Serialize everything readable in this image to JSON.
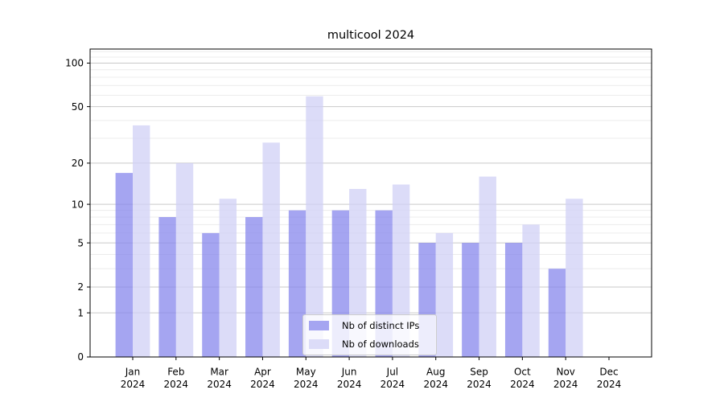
{
  "title": "multicool 2024",
  "colors": {
    "ips_bar": "#8787ec",
    "downloads_bar": "#d0d0f6",
    "bar_opacity": 0.75,
    "ips_rendered": "#a5a5f1",
    "downloads_rendered": "#dcdcf8",
    "grid_major": "#c9c9c9",
    "grid_minor": "#ececec",
    "axis": "#000000",
    "text": "#000000",
    "legend_border": "#cccccc"
  },
  "legend": {
    "items": [
      {
        "label": "Nb of distinct IPs",
        "series": 0
      },
      {
        "label": "Nb of downloads",
        "series": 1
      }
    ]
  },
  "chart_data": {
    "type": "bar",
    "title": "multicool 2024",
    "categories": [
      "Jan 2024",
      "Feb 2024",
      "Mar 2024",
      "Apr 2024",
      "May 2024",
      "Jun 2024",
      "Jul 2024",
      "Aug 2024",
      "Sep 2024",
      "Oct 2024",
      "Nov 2024",
      "Dec 2024"
    ],
    "series": [
      {
        "name": "Nb of distinct IPs",
        "color_key": "ips_bar",
        "values": [
          17,
          8,
          6,
          8,
          9,
          9,
          9,
          5,
          5,
          5,
          3,
          0
        ]
      },
      {
        "name": "Nb of downloads",
        "color_key": "downloads_bar",
        "values": [
          37,
          20,
          11,
          28,
          59,
          13,
          14,
          6,
          16,
          7,
          11,
          0
        ]
      }
    ],
    "xlabel": "",
    "ylabel": "",
    "yscale": "log1p",
    "ylim": [
      0,
      125
    ],
    "yticks": [
      0,
      1,
      2,
      5,
      10,
      20,
      50,
      100
    ],
    "yticks_minor": [
      3,
      4,
      6,
      7,
      8,
      9,
      30,
      40,
      60,
      70,
      80,
      90,
      110,
      120
    ],
    "grid": "both",
    "legend_position": "lower center"
  }
}
